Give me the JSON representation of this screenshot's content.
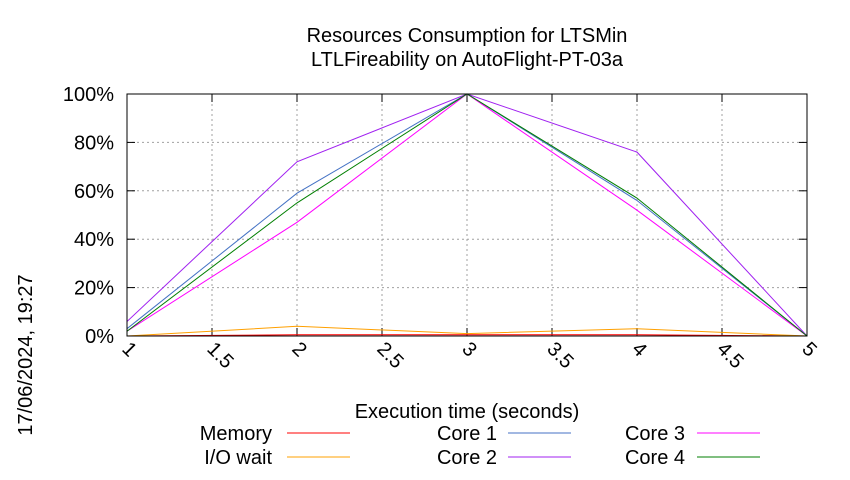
{
  "chart_data": {
    "type": "line",
    "title": "Resources Consumption for LTSMin",
    "subtitle": "LTLFireability on AutoFlight-PT-03a",
    "xlabel": "Execution time (seconds)",
    "ylabel": "",
    "timestamp": "17/06/2024, 19:27",
    "xlim": [
      1,
      5
    ],
    "ylim": [
      0,
      100
    ],
    "x_ticks": [
      "1",
      "1.5",
      "2",
      "2.5",
      "3",
      "3.5",
      "4",
      "4.5",
      "5"
    ],
    "y_ticks": [
      "0%",
      "20%",
      "40%",
      "60%",
      "80%",
      "100%"
    ],
    "grid": true,
    "legend_position": "bottom",
    "x": [
      1,
      2,
      3,
      4,
      5
    ],
    "series": [
      {
        "name": "Memory",
        "color": "#ff0000",
        "values": [
          0,
          0.5,
          0.5,
          0.5,
          0
        ]
      },
      {
        "name": "I/O wait",
        "color": "#ffa000",
        "values": [
          0,
          4,
          1,
          3,
          0
        ]
      },
      {
        "name": "Core 1",
        "color": "#4472c4",
        "values": [
          3,
          59,
          100,
          56,
          0
        ]
      },
      {
        "name": "Core 2",
        "color": "#a020f0",
        "values": [
          6,
          72,
          100,
          76,
          0
        ]
      },
      {
        "name": "Core 3",
        "color": "#ff00ff",
        "values": [
          2,
          47,
          100,
          52,
          0
        ]
      },
      {
        "name": "Core 4",
        "color": "#007f00",
        "values": [
          2,
          55,
          100,
          57,
          0
        ]
      }
    ]
  }
}
